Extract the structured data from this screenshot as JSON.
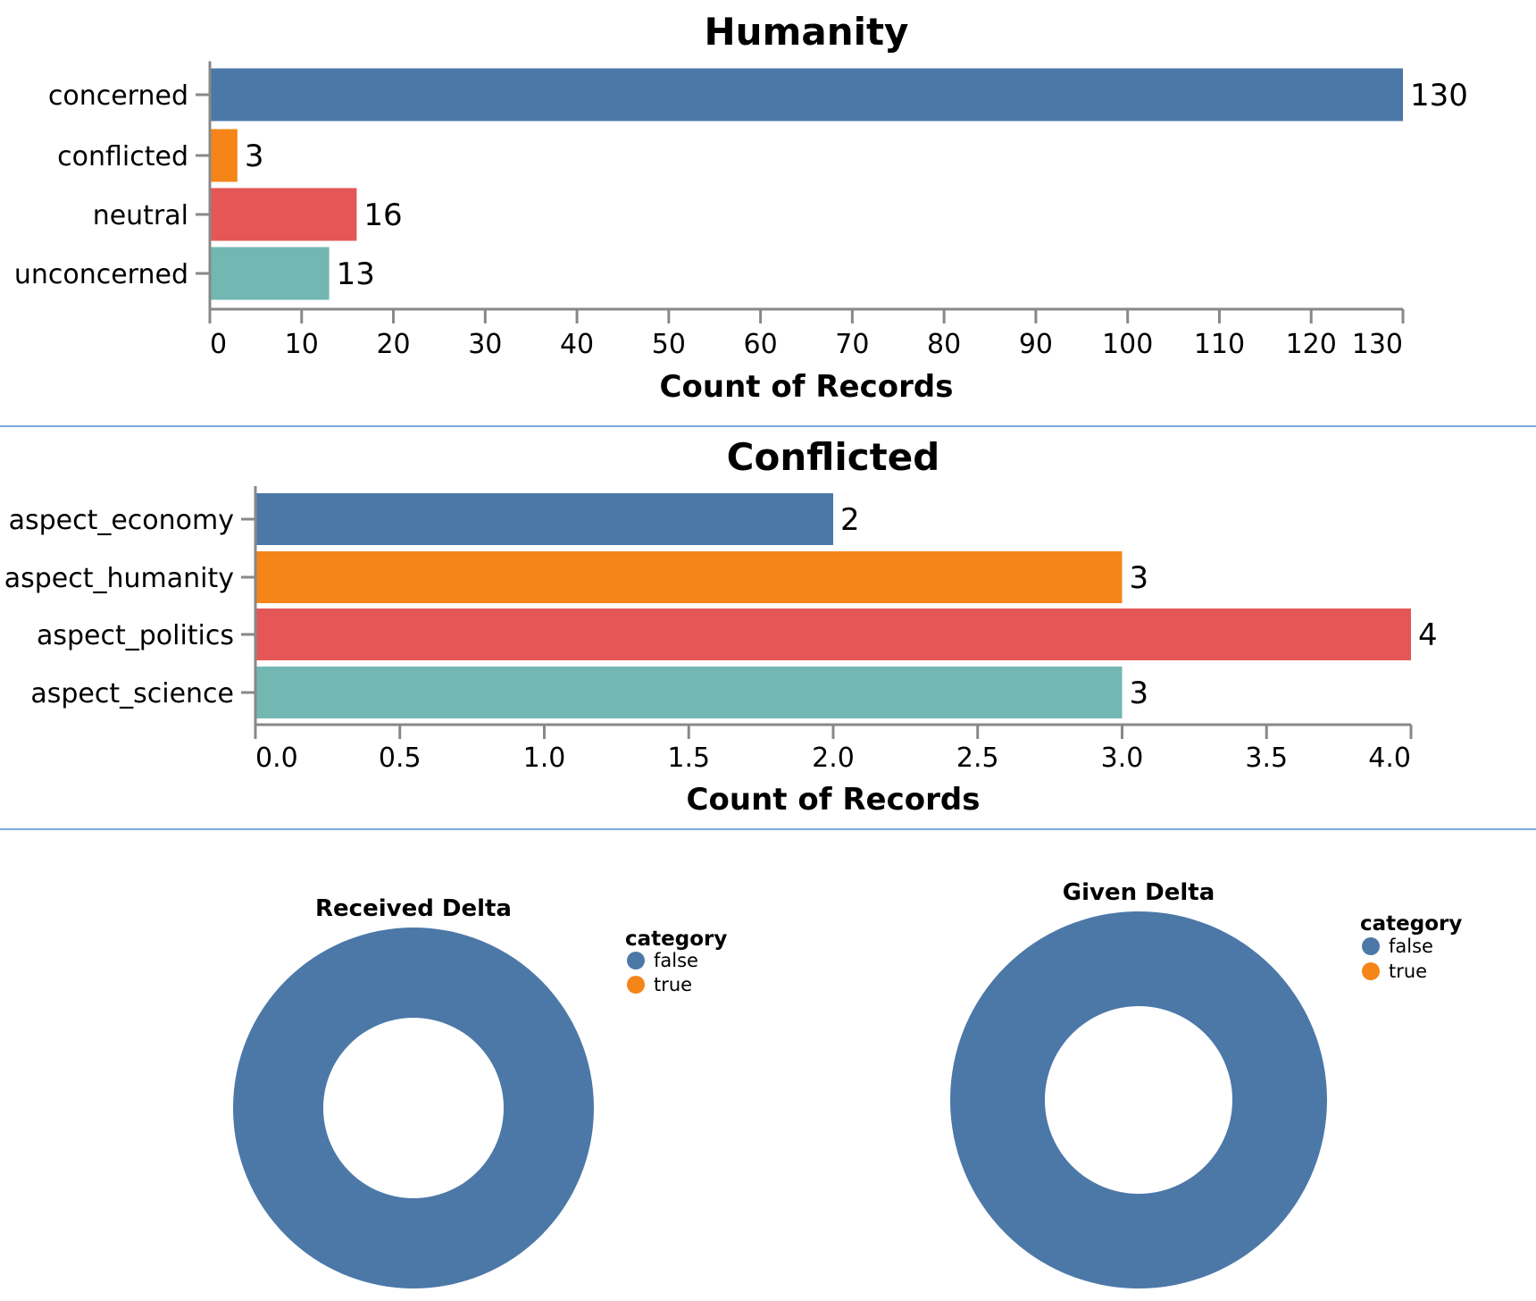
{
  "chart_data": [
    {
      "type": "bar",
      "orientation": "horizontal",
      "title": "Humanity",
      "xlabel": "Count of Records",
      "ylabel": "",
      "categories": [
        "concerned",
        "conflicted",
        "neutral",
        "unconcerned"
      ],
      "values": [
        130,
        3,
        16,
        13
      ],
      "data_labels": [
        "130",
        "3",
        "16",
        "13"
      ],
      "colors": [
        "#4c78a8",
        "#f58518",
        "#e45756",
        "#72b7b2"
      ],
      "xlim": [
        0,
        130
      ],
      "ticks": [
        0,
        10,
        20,
        30,
        40,
        50,
        60,
        70,
        80,
        90,
        100,
        110,
        120,
        130
      ],
      "tick_labels": [
        "0",
        "10",
        "20",
        "30",
        "40",
        "50",
        "60",
        "70",
        "80",
        "90",
        "100",
        "110",
        "120",
        "130"
      ],
      "grid": false
    },
    {
      "type": "bar",
      "orientation": "horizontal",
      "title": "Conflicted",
      "xlabel": "Count of Records",
      "ylabel": "",
      "categories": [
        "aspect_economy",
        "aspect_humanity",
        "aspect_politics",
        "aspect_science"
      ],
      "values": [
        2,
        3,
        4,
        3
      ],
      "data_labels": [
        "2",
        "3",
        "4",
        "3"
      ],
      "colors": [
        "#4c78a8",
        "#f58518",
        "#e45756",
        "#72b7b2"
      ],
      "xlim": [
        0,
        4
      ],
      "ticks": [
        0,
        0.5,
        1,
        1.5,
        2,
        2.5,
        3,
        3.5,
        4
      ],
      "tick_labels": [
        "0.0",
        "0.5",
        "1.0",
        "1.5",
        "2.0",
        "2.5",
        "3.0",
        "3.5",
        "4.0"
      ],
      "grid": false
    },
    {
      "type": "pie",
      "donut": true,
      "title": "Received Delta",
      "legend_title": "category",
      "legend_placement": "top-right",
      "labels": [
        "false",
        "true"
      ],
      "values": [
        1,
        0
      ],
      "colors": [
        "#4c78a8",
        "#f58518"
      ]
    },
    {
      "type": "pie",
      "donut": true,
      "title": "Given Delta",
      "legend_title": "category",
      "legend_placement": "top-right",
      "labels": [
        "false",
        "true"
      ],
      "values": [
        1,
        0
      ],
      "colors": [
        "#4c78a8",
        "#f58518"
      ]
    }
  ]
}
